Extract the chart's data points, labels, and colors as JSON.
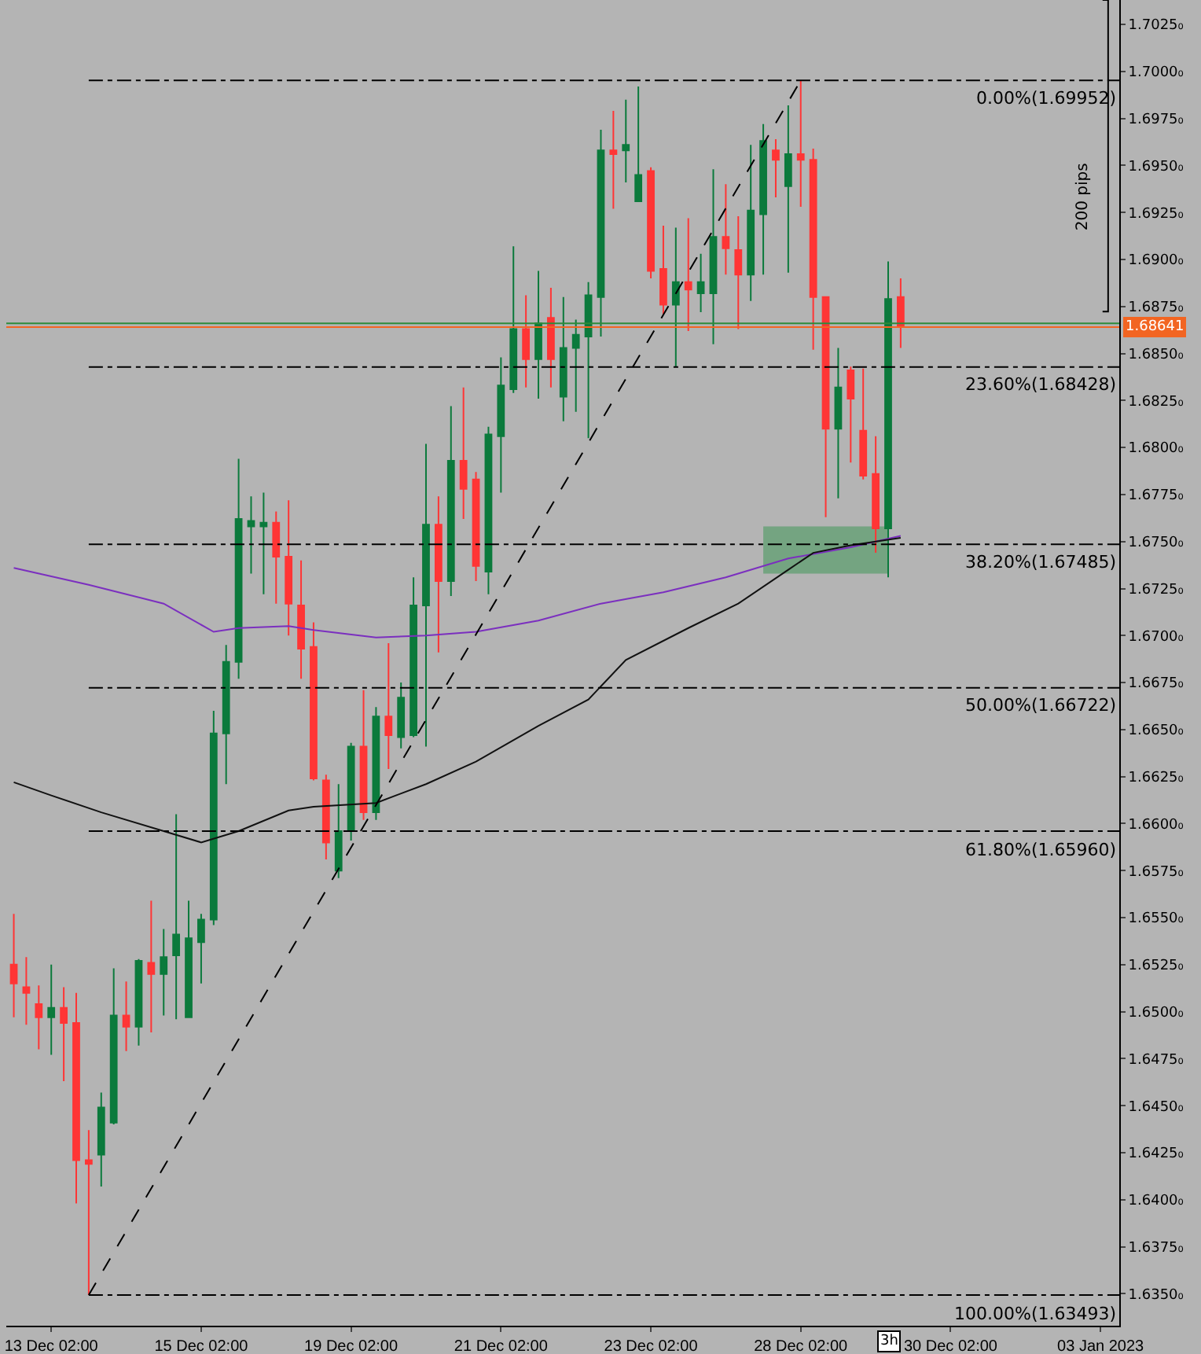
{
  "chart_data": {
    "type": "candlestick",
    "categories": [
      null,
      null,
      null,
      "13 Dec 02:00",
      null,
      null,
      null,
      null,
      null,
      null,
      null,
      null,
      null,
      null,
      null,
      "15 Dec 02:00",
      null,
      null,
      null,
      null,
      null,
      null,
      null,
      null,
      null,
      null,
      null,
      "19 Dec 02:00",
      null,
      null,
      null,
      null,
      null,
      null,
      null,
      null,
      null,
      null,
      null,
      "21 Dec 02:00",
      null,
      null,
      null,
      null,
      null,
      null,
      null,
      null,
      null,
      null,
      null,
      "23 Dec 02:00",
      null,
      null,
      null,
      null,
      null,
      null,
      null,
      null,
      null,
      null,
      null,
      "28 Dec 02:00",
      null,
      null,
      null,
      null,
      null,
      null,
      null,
      null,
      null,
      null,
      null,
      "30 Dec 02:00",
      null,
      null,
      null,
      null,
      null,
      null,
      null,
      null,
      null,
      null,
      null,
      "03 Jan 2023",
      null
    ],
    "ohlc": [
      [
        1.6525,
        1.6552,
        1.6497,
        1.6515
      ],
      [
        1.6513,
        1.6529,
        1.6493,
        1.651
      ],
      [
        1.6504,
        1.6514,
        1.648,
        1.6497
      ],
      [
        1.6497,
        1.6525,
        1.6477,
        1.6502
      ],
      [
        1.6502,
        1.6513,
        1.6463,
        1.6494
      ],
      [
        1.6494,
        1.651,
        1.6398,
        1.6421
      ],
      [
        1.6421,
        1.6437,
        1.63493,
        1.6419
      ],
      [
        1.6424,
        1.6457,
        1.6407,
        1.6449
      ],
      [
        1.6441,
        1.6523,
        1.644,
        1.6498
      ],
      [
        1.6498,
        1.6516,
        1.6479,
        1.6492
      ],
      [
        1.6492,
        1.6528,
        1.6482,
        1.6527
      ],
      [
        1.6526,
        1.6559,
        1.6489,
        1.652
      ],
      [
        1.652,
        1.6544,
        1.6498,
        1.6529
      ],
      [
        1.653,
        1.6605,
        1.6496,
        1.6541
      ],
      [
        1.6497,
        1.6559,
        1.6497,
        1.6539
      ],
      [
        1.6537,
        1.6552,
        1.6515,
        1.6549
      ],
      [
        1.6549,
        1.666,
        1.6546,
        1.6648
      ],
      [
        1.6648,
        1.6695,
        1.6621,
        1.6686
      ],
      [
        1.6686,
        1.6794,
        1.6677,
        1.6762
      ],
      [
        1.6758,
        1.6774,
        1.6733,
        1.6761
      ],
      [
        1.6758,
        1.6776,
        1.6722,
        1.676
      ],
      [
        1.676,
        1.6766,
        1.6717,
        1.6742
      ],
      [
        1.6742,
        1.6772,
        1.67,
        1.6717
      ],
      [
        1.6716,
        1.674,
        1.6677,
        1.6693
      ],
      [
        1.6694,
        1.6707,
        1.6623,
        1.6624
      ],
      [
        1.6623,
        1.6626,
        1.6581,
        1.659
      ],
      [
        1.6575,
        1.6621,
        1.6571,
        1.6596
      ],
      [
        1.6596,
        1.6643,
        1.6591,
        1.6641
      ],
      [
        1.6641,
        1.6671,
        1.6602,
        1.6606
      ],
      [
        1.6606,
        1.6662,
        1.6602,
        1.6657
      ],
      [
        1.6657,
        1.6696,
        1.6629,
        1.6647
      ],
      [
        1.6646,
        1.6675,
        1.664,
        1.6667
      ],
      [
        1.6647,
        1.6731,
        1.6646,
        1.6716
      ],
      [
        1.6716,
        1.6802,
        1.6641,
        1.6759
      ],
      [
        1.6759,
        1.6774,
        1.6691,
        1.6729
      ],
      [
        1.6729,
        1.6822,
        1.6721,
        1.6793
      ],
      [
        1.6793,
        1.6832,
        1.6762,
        1.6778
      ],
      [
        1.6783,
        1.6787,
        1.6729,
        1.6737
      ],
      [
        1.6734,
        1.6811,
        1.6722,
        1.6807
      ],
      [
        1.6806,
        1.6848,
        1.6776,
        1.6833
      ],
      [
        1.6831,
        1.6907,
        1.6829,
        1.6863
      ],
      [
        1.6863,
        1.6881,
        1.6832,
        1.6847
      ],
      [
        1.6847,
        1.6894,
        1.6826,
        1.6866
      ],
      [
        1.6869,
        1.6885,
        1.6832,
        1.6847
      ],
      [
        1.6827,
        1.688,
        1.6814,
        1.6853
      ],
      [
        1.6853,
        1.6868,
        1.6819,
        1.686
      ],
      [
        1.6859,
        1.6888,
        1.6805,
        1.6881
      ],
      [
        1.688,
        1.6969,
        1.6859,
        1.6958
      ],
      [
        1.6958,
        1.6979,
        1.6927,
        1.6956
      ],
      [
        1.6958,
        1.6985,
        1.6941,
        1.6961
      ],
      [
        1.6931,
        1.6992,
        1.6931,
        1.6945
      ],
      [
        1.6947,
        1.6949,
        1.689,
        1.6894
      ],
      [
        1.6895,
        1.6918,
        1.6871,
        1.6876
      ],
      [
        1.6876,
        1.6917,
        1.6843,
        1.6888
      ],
      [
        1.6888,
        1.6922,
        1.6862,
        1.6884
      ],
      [
        1.6882,
        1.6903,
        1.6872,
        1.6888
      ],
      [
        1.6882,
        1.6948,
        1.6855,
        1.6912
      ],
      [
        1.6912,
        1.694,
        1.6892,
        1.6906
      ],
      [
        1.6905,
        1.6923,
        1.6863,
        1.6892
      ],
      [
        1.6892,
        1.6961,
        1.6878,
        1.6926
      ],
      [
        1.6924,
        1.6972,
        1.6892,
        1.6963
      ],
      [
        1.6958,
        1.6964,
        1.6933,
        1.6953
      ],
      [
        1.6939,
        1.6982,
        1.6893,
        1.6956
      ],
      [
        1.6956,
        1.69952,
        1.6928,
        1.6953
      ],
      [
        1.6953,
        1.6959,
        1.6852,
        1.688
      ],
      [
        1.688,
        1.688,
        1.6763,
        1.681
      ],
      [
        1.681,
        1.6853,
        1.6773,
        1.6832
      ],
      [
        1.6841,
        1.6843,
        1.6792,
        1.6826
      ],
      [
        1.6809,
        1.6842,
        1.6783,
        1.6785
      ],
      [
        1.6786,
        1.6806,
        1.6744,
        1.6757
      ],
      [
        1.6757,
        1.6899,
        1.6731,
        1.6879
      ],
      [
        1.688,
        1.689,
        1.6853,
        1.68641
      ],
      null,
      null,
      null,
      null,
      null,
      null,
      null,
      null,
      null,
      null,
      null,
      null,
      null,
      null,
      null,
      null,
      null
    ],
    "colors": [
      "#ff3535",
      "#ff3535",
      "#ff3535",
      "#0b7a3c",
      "#ff3535",
      "#ff3535",
      "#ff3535",
      "#0b7a3c",
      "#0b7a3c",
      "#ff3535",
      "#0b7a3c",
      "#ff3535",
      "#0b7a3c",
      "#0b7a3c",
      "#0b7a3c",
      "#0b7a3c",
      "#0b7a3c",
      "#0b7a3c",
      "#0b7a3c",
      "#0b7a3c",
      "#0b7a3c",
      "#ff3535",
      "#ff3535",
      "#ff3535",
      "#ff3535",
      "#ff3535",
      "#0b7a3c",
      "#0b7a3c",
      "#ff3535",
      "#0b7a3c",
      "#ff3535",
      "#0b7a3c",
      "#0b7a3c",
      "#0b7a3c",
      "#ff3535",
      "#0b7a3c",
      "#ff3535",
      "#ff3535",
      "#0b7a3c",
      "#0b7a3c",
      "#0b7a3c",
      "#ff3535",
      "#0b7a3c",
      "#ff3535",
      "#0b7a3c",
      "#0b7a3c",
      "#0b7a3c",
      "#0b7a3c",
      "#ff3535",
      "#0b7a3c",
      "#0b7a3c",
      "#ff3535",
      "#ff3535",
      "#0b7a3c",
      "#ff3535",
      "#0b7a3c",
      "#0b7a3c",
      "#ff3535",
      "#ff3535",
      "#0b7a3c",
      "#0b7a3c",
      "#ff3535",
      "#0b7a3c",
      "#ff3535",
      "#ff3535",
      "#ff3535",
      "#0b7a3c",
      "#ff3535",
      "#ff3535",
      "#ff3535",
      "#0b7a3c",
      "#ff3535",
      null,
      null,
      null,
      null,
      null,
      null,
      null,
      null,
      null,
      null,
      null,
      null,
      null,
      null,
      null,
      null,
      null
    ],
    "series": [
      {
        "type": "line",
        "color": "#7b2fbf",
        "values": [
          1.6736,
          null,
          null,
          null,
          null,
          null,
          1.6727,
          null,
          null,
          null,
          null,
          null,
          1.6717,
          null,
          null,
          null,
          1.6702,
          null,
          1.6704,
          null,
          null,
          null,
          1.6705,
          null,
          1.6703,
          null,
          null,
          null,
          null,
          1.6699,
          null,
          null,
          null,
          1.67,
          null,
          null,
          null,
          1.6702,
          null,
          null,
          null,
          null,
          1.6708,
          null,
          null,
          null,
          null,
          1.6717,
          null,
          null,
          null,
          null,
          1.6723,
          null,
          null,
          null,
          null,
          1.6731,
          null,
          null,
          null,
          null,
          1.6741,
          null,
          null,
          null,
          null,
          1.6747,
          null,
          null,
          null,
          1.6753,
          null,
          null,
          null,
          null,
          null,
          null,
          null,
          null,
          null,
          null,
          null,
          null,
          null,
          null,
          null,
          null,
          null
        ]
      },
      {
        "type": "line",
        "color": "#111111",
        "values": [
          1.6622,
          null,
          null,
          1.6615,
          null,
          null,
          null,
          1.6606,
          null,
          null,
          null,
          null,
          1.6596,
          null,
          null,
          1.659,
          null,
          null,
          1.6596,
          null,
          null,
          null,
          1.6607,
          null,
          1.6609,
          null,
          null,
          null,
          null,
          1.6611,
          null,
          null,
          null,
          1.6621,
          null,
          null,
          null,
          1.6633,
          null,
          null,
          null,
          null,
          1.6652,
          null,
          null,
          null,
          1.6666,
          null,
          null,
          1.6687,
          null,
          null,
          null,
          null,
          1.6704,
          null,
          null,
          null,
          1.6717,
          null,
          null,
          null,
          1.6735,
          null,
          1.6744,
          null,
          null,
          1.6748,
          null,
          null,
          null,
          1.6752,
          null,
          null,
          null,
          null,
          null,
          null,
          null,
          null,
          null,
          null,
          null,
          null,
          null,
          null,
          null,
          null,
          null
        ]
      },
      {
        "type": "line",
        "color": "#000000",
        "line_style": "dashed",
        "values": [
          null,
          null,
          null,
          null,
          null,
          null,
          1.63493,
          null,
          null,
          null,
          null,
          null,
          null,
          null,
          null,
          null,
          null,
          null,
          null,
          null,
          null,
          null,
          null,
          null,
          null,
          null,
          null,
          null,
          null,
          null,
          null,
          null,
          null,
          null,
          null,
          null,
          null,
          null,
          null,
          null,
          null,
          null,
          null,
          null,
          null,
          null,
          null,
          null,
          null,
          null,
          null,
          null,
          null,
          null,
          null,
          null,
          null,
          null,
          null,
          null,
          null,
          null,
          null,
          1.69952,
          null,
          null,
          null,
          null,
          null,
          null,
          null,
          null,
          null,
          null,
          null,
          null,
          null,
          null,
          null,
          null,
          null,
          null,
          null,
          null,
          null,
          null,
          null,
          null,
          null
        ]
      },
      {
        "type": "area",
        "color": "#5f9f70",
        "values": [
          null,
          null,
          null,
          null,
          null,
          null,
          null,
          null,
          null,
          null,
          null,
          null,
          null,
          null,
          null,
          null,
          null,
          null,
          null,
          null,
          null,
          null,
          null,
          null,
          null,
          null,
          null,
          null,
          null,
          null,
          null,
          null,
          null,
          null,
          null,
          null,
          null,
          null,
          null,
          null,
          null,
          null,
          null,
          null,
          null,
          null,
          null,
          null,
          null,
          null,
          null,
          null,
          null,
          null,
          null,
          null,
          null,
          null,
          null,
          null,
          null,
          null,
          null,
          null,
          null,
          null,
          null,
          null,
          null,
          null,
          null,
          null,
          null,
          null,
          null,
          null,
          null,
          null,
          null,
          null,
          null,
          null,
          null,
          null,
          null,
          null,
          null,
          null,
          null
        ],
        "lower": [
          null,
          null,
          null,
          null,
          null,
          null,
          null,
          null,
          null,
          null,
          null,
          null,
          null,
          null,
          null,
          null,
          null,
          null,
          null,
          null,
          null,
          null,
          null,
          null,
          null,
          null,
          null,
          null,
          null,
          null,
          null,
          null,
          null,
          null,
          null,
          null,
          null,
          null,
          null,
          null,
          null,
          null,
          null,
          null,
          null,
          null,
          null,
          null,
          null,
          null,
          null,
          null,
          null,
          null,
          null,
          null,
          null,
          null,
          null,
          null,
          1.6733,
          null,
          null,
          null,
          null,
          null,
          null,
          null,
          null,
          null,
          1.6733,
          null,
          null,
          null,
          null,
          null,
          null,
          null,
          null,
          null,
          null,
          null,
          null,
          null,
          null,
          null,
          null,
          null,
          null
        ],
        "upper": [
          null,
          null,
          null,
          null,
          null,
          null,
          null,
          null,
          null,
          null,
          null,
          null,
          null,
          null,
          null,
          null,
          null,
          null,
          null,
          null,
          null,
          null,
          null,
          null,
          null,
          null,
          null,
          null,
          null,
          null,
          null,
          null,
          null,
          null,
          null,
          null,
          null,
          null,
          null,
          null,
          null,
          null,
          null,
          null,
          null,
          null,
          null,
          null,
          null,
          null,
          null,
          null,
          null,
          null,
          null,
          null,
          null,
          null,
          null,
          null,
          1.6758,
          null,
          null,
          null,
          null,
          null,
          null,
          null,
          null,
          null,
          1.6758,
          null,
          null,
          null,
          null,
          null,
          null,
          null,
          null,
          null,
          null,
          null,
          null,
          null,
          null,
          null,
          null,
          null,
          null
        ]
      }
    ],
    "ref_lines": [
      {
        "axis": "y",
        "value": 1.69952,
        "label": "0.00%(1.69952)",
        "color": "#000000",
        "line_style": "dashdot"
      },
      {
        "axis": "y",
        "value": 1.68428,
        "label": "23.60%(1.68428)",
        "color": "#000000",
        "line_style": "dashdot"
      },
      {
        "axis": "y",
        "value": 1.67485,
        "label": "38.20%(1.67485)",
        "color": "#000000",
        "line_style": "dashdot"
      },
      {
        "axis": "y",
        "value": 1.66722,
        "label": "50.00%(1.66722)",
        "color": "#000000",
        "line_style": "dashdot"
      },
      {
        "axis": "y",
        "value": 1.6596,
        "label": "61.80%(1.65960)",
        "color": "#000000",
        "line_style": "dashdot"
      },
      {
        "axis": "y",
        "value": 1.63493,
        "label": "100.00%(1.63493)",
        "color": "#000000",
        "line_style": "dashdot"
      },
      {
        "axis": "y",
        "value": 1.6866,
        "color": "#2e8b3a",
        "line_style": "solid"
      },
      {
        "axis": "y",
        "value": 1.68641,
        "label": "1.68641",
        "color": "#f26522",
        "line_style": "solid"
      }
    ],
    "annotations": [
      "200 pips",
      "3h"
    ],
    "ylim": [
      1.6333,
      1.7038
    ],
    "yticks": [
      {
        "value": 1.7025,
        "label": "1.7025₀"
      },
      {
        "value": 1.7,
        "label": "1.7000₀"
      },
      {
        "value": 1.6975,
        "label": "1.6975₀"
      },
      {
        "value": 1.695,
        "label": "1.6950₀"
      },
      {
        "value": 1.6925,
        "label": "1.6925₀"
      },
      {
        "value": 1.69,
        "label": "1.6900₀"
      },
      {
        "value": 1.6875,
        "label": "1.6875₀"
      },
      {
        "value": 1.685,
        "label": "1.6850₀"
      },
      {
        "value": 1.6825,
        "label": "1.6825₀"
      },
      {
        "value": 1.68,
        "label": "1.6800₀"
      },
      {
        "value": 1.6775,
        "label": "1.6775₀"
      },
      {
        "value": 1.675,
        "label": "1.6750₀"
      },
      {
        "value": 1.6725,
        "label": "1.6725₀"
      },
      {
        "value": 1.67,
        "label": "1.6700₀"
      },
      {
        "value": 1.6675,
        "label": "1.6675₀"
      },
      {
        "value": 1.665,
        "label": "1.6650₀"
      },
      {
        "value": 1.6625,
        "label": "1.6625₀"
      },
      {
        "value": 1.66,
        "label": "1.6600₀"
      },
      {
        "value": 1.6575,
        "label": "1.6575₀"
      },
      {
        "value": 1.655,
        "label": "1.6550₀"
      },
      {
        "value": 1.6525,
        "label": "1.6525₀"
      },
      {
        "value": 1.65,
        "label": "1.6500₀"
      },
      {
        "value": 1.6475,
        "label": "1.6475₀"
      },
      {
        "value": 1.645,
        "label": "1.6450₀"
      },
      {
        "value": 1.6425,
        "label": "1.6425₀"
      },
      {
        "value": 1.64,
        "label": "1.6400₀"
      },
      {
        "value": 1.6375,
        "label": "1.6375₀"
      },
      {
        "value": 1.635,
        "label": "1.6350₀"
      }
    ],
    "tick_labels": "xy"
  }
}
